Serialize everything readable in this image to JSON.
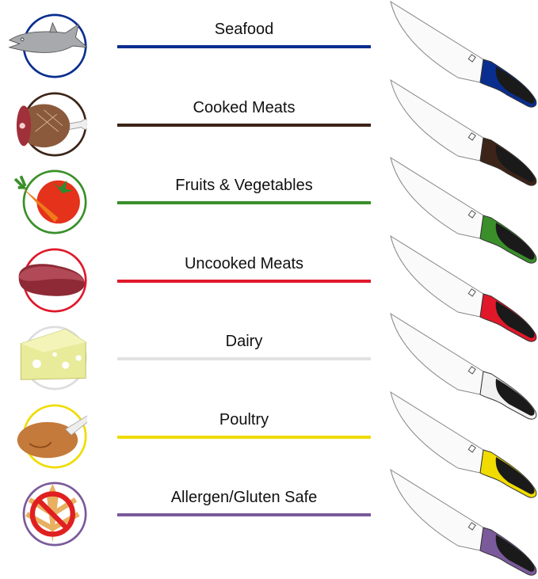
{
  "categories": [
    {
      "label": "Seafood",
      "color": "#0a2e8f",
      "icon": "fish-icon"
    },
    {
      "label": "Cooked Meats",
      "color": "#3c2418",
      "icon": "ham-icon"
    },
    {
      "label": "Fruits & Vegetables",
      "color": "#3a8f2a",
      "icon": "vegetables-icon"
    },
    {
      "label": "Uncooked Meats",
      "color": "#e0182a",
      "icon": "steak-icon"
    },
    {
      "label": "Dairy",
      "color": "#e2e2e2",
      "icon": "cheese-icon"
    },
    {
      "label": "Poultry",
      "color": "#f0dc00",
      "icon": "turkey-icon"
    },
    {
      "label": "Allergen/Gluten Safe",
      "color": "#7a5a9a",
      "icon": "no-gluten-icon"
    }
  ]
}
